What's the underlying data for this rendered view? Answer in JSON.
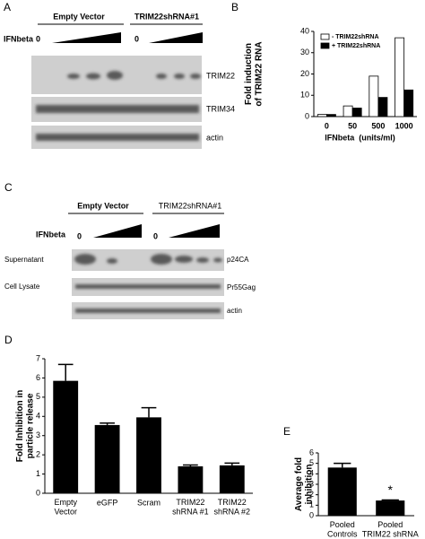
{
  "panel_labels": [
    "A",
    "B",
    "C",
    "D",
    "E"
  ],
  "blot_a": {
    "groups": [
      "Empty Vector",
      "TRIM22shRNA#1"
    ],
    "treatment": "IFNbeta",
    "zeros": [
      "0",
      "0"
    ],
    "bands": [
      "TRIM22",
      "TRIM34",
      "actin"
    ]
  },
  "blot_c": {
    "groups": [
      "Empty Vector",
      "TRIM22shRNA#1"
    ],
    "treatment": "IFNbeta",
    "zeros": [
      "0",
      "0"
    ],
    "fractions": [
      "Supernatant",
      "Cell Lysate"
    ],
    "bands": [
      "p24CA",
      "Pr55Gag",
      "actin"
    ]
  },
  "chart_data": [
    {
      "type": "bar",
      "ylabel": "Fold induction of TRIM22 RNA",
      "xlabel": "IFNbeta  (units/ml)",
      "categories": [
        "0",
        "50",
        "500",
        "1000"
      ],
      "series": [
        {
          "name": "- TRIM22shRNA",
          "color": "#ffffff",
          "values": [
            1,
            5,
            19,
            37
          ]
        },
        {
          "name": "+ TRIM22shRNA",
          "color": "#000000",
          "values": [
            1,
            4,
            9,
            12.5
          ]
        }
      ],
      "ylim": [
        0,
        40
      ],
      "yticks": [
        0,
        10,
        20,
        30,
        40
      ],
      "grid": false,
      "legend": "top-left"
    },
    {
      "type": "bar",
      "ylabel": "Fold Inhibition in particle release",
      "categories": [
        "Empty Vector",
        "eGFP",
        "Scram",
        "TRIM22 shRNA #1",
        "TRIM22 shRNA #2"
      ],
      "values": [
        5.85,
        3.55,
        3.95,
        1.4,
        1.45
      ],
      "errors": [
        0.85,
        0.1,
        0.5,
        0.07,
        0.12
      ],
      "color": "#000000",
      "ylim": [
        0,
        7
      ],
      "yticks": [
        0,
        1,
        2,
        3,
        4,
        5,
        6,
        7
      ],
      "grid": false
    },
    {
      "type": "bar",
      "ylabel": "Average fold inhibition",
      "categories": [
        "Pooled Controls",
        "Pooled TRIM22 shRNA"
      ],
      "values": [
        4.6,
        1.45
      ],
      "errors": [
        0.4,
        0.05
      ],
      "color": "#000000",
      "annotation": "*",
      "ylim": [
        0,
        6
      ],
      "yticks": [
        0,
        1,
        2,
        3,
        4,
        5,
        6
      ],
      "grid": false
    }
  ]
}
